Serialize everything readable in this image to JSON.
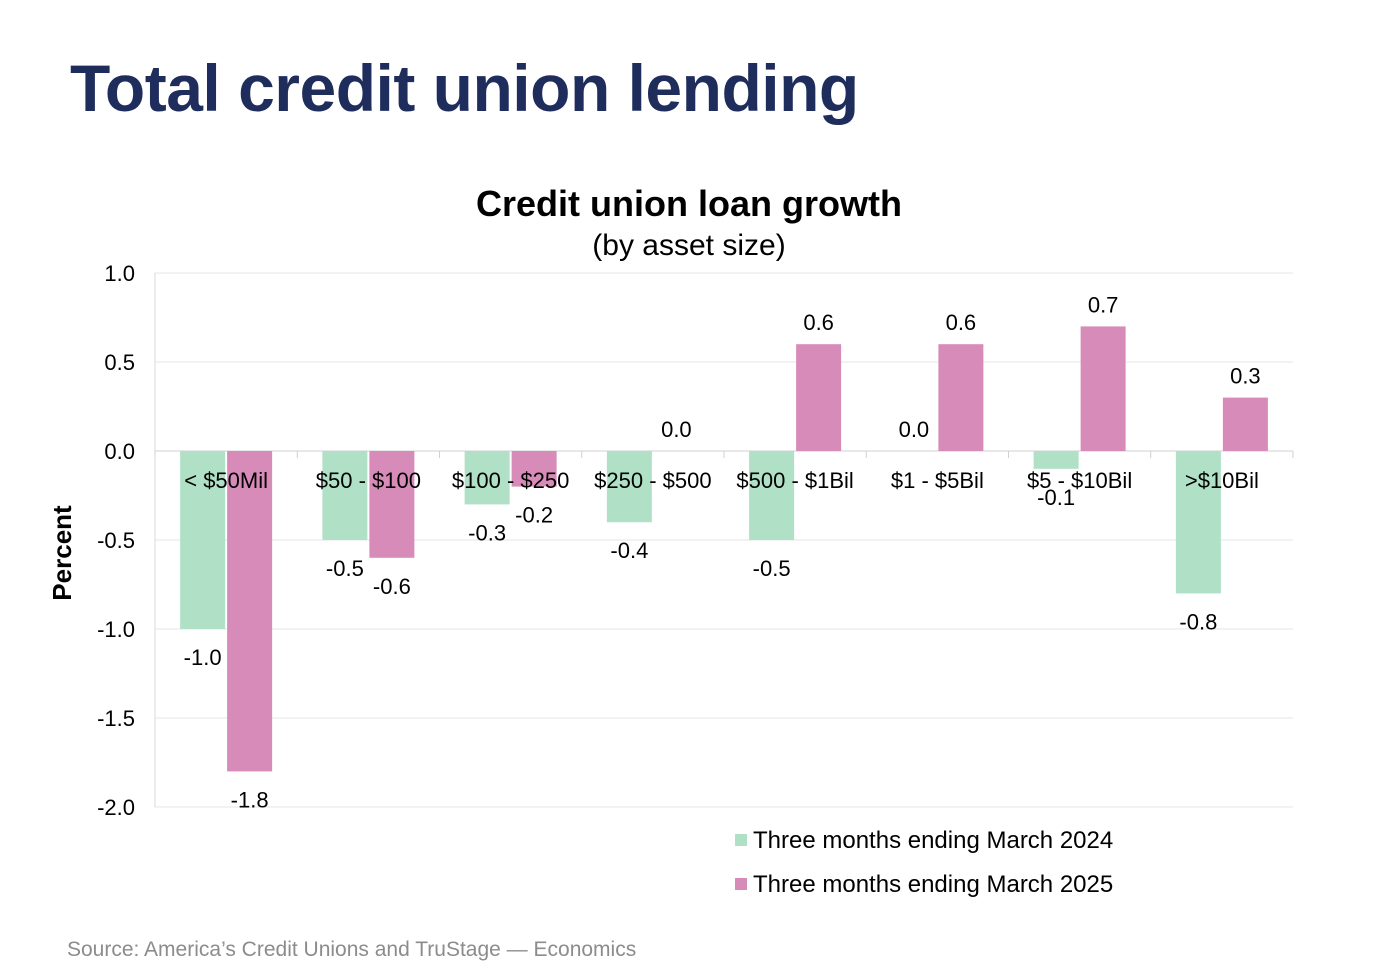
{
  "slide_title": "Total credit union lending",
  "source": "Source: America’s Credit Unions and TruStage — Economics",
  "chart_data": {
    "type": "bar",
    "title": "Credit union loan growth",
    "subtitle": "(by asset size)",
    "xlabel": "",
    "ylabel": "Percent",
    "ylim": [
      -2.0,
      1.0
    ],
    "yticks": [
      "1.0",
      "0.5",
      "0.0",
      "-0.5",
      "-1.0",
      "-1.5",
      "-2.0"
    ],
    "grid": true,
    "legend_position": "bottom-right",
    "categories": [
      "< $50Mil",
      "$50 - $100",
      "$100 - $250",
      "$250 - $500",
      "$500 - $1Bil",
      "$1 - $5Bil",
      "$5 - $10Bil",
      ">$10Bil"
    ],
    "series": [
      {
        "name": "Three months ending March 2024",
        "color": "#b0e0c6",
        "values": [
          -1.0,
          -0.5,
          -0.3,
          -0.4,
          -0.5,
          0.0,
          -0.1,
          -0.8
        ],
        "labels": [
          "-1.0",
          "-0.5",
          "-0.3",
          "-0.4",
          "-0.5",
          "0.0",
          "-0.1",
          "-0.8"
        ]
      },
      {
        "name": "Three months ending March 2025",
        "color": "#d78bb8",
        "values": [
          -1.8,
          -0.6,
          -0.2,
          0.0,
          0.6,
          0.6,
          0.7,
          0.3
        ],
        "labels": [
          "-1.8",
          "-0.6",
          "-0.2",
          "0.0",
          "0.6",
          "0.6",
          "0.7",
          "0.3"
        ]
      }
    ]
  }
}
